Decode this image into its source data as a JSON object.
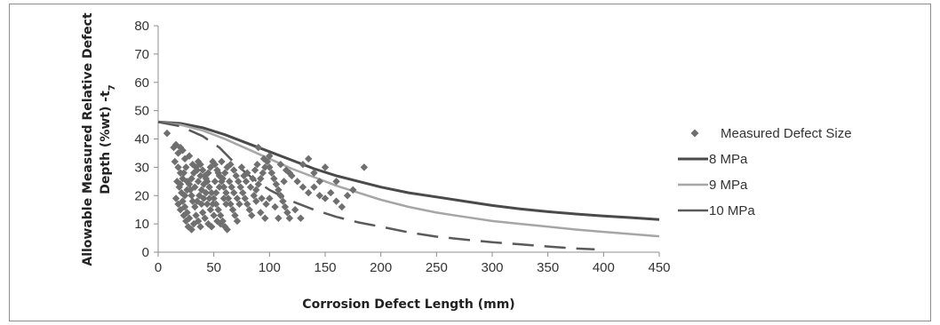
{
  "chart_data": {
    "type": "scatter",
    "xlabel": "Corrosion Defect Length (mm)",
    "ylabel_line1": "Allowable Measured Relative Defect",
    "ylabel_line2": "Depth (%wt) -t",
    "ylabel_subscript": "7",
    "xlim": [
      0,
      450
    ],
    "ylim": [
      0,
      80
    ],
    "x_ticks": [
      0,
      50,
      100,
      150,
      200,
      250,
      300,
      350,
      400,
      450
    ],
    "y_ticks": [
      0,
      10,
      20,
      30,
      40,
      50,
      60,
      70,
      80
    ],
    "grid": false,
    "legend_position": "right",
    "colors": {
      "points": "#6f6f6f",
      "line_8mpa": "#4a4a4a",
      "line_9mpa": "#a6a6a6",
      "line_10mpa": "#5a5a5a",
      "axis": "#8c8c8c"
    },
    "series": [
      {
        "name": "Measured Defect Size",
        "kind": "points",
        "points": [
          [
            8,
            42
          ],
          [
            14,
            37
          ],
          [
            16,
            38
          ],
          [
            18,
            35
          ],
          [
            20,
            37
          ],
          [
            22,
            36
          ],
          [
            24,
            33
          ],
          [
            15,
            32
          ],
          [
            18,
            30
          ],
          [
            20,
            28
          ],
          [
            22,
            26
          ],
          [
            17,
            25
          ],
          [
            19,
            23
          ],
          [
            21,
            21
          ],
          [
            16,
            19
          ],
          [
            18,
            17
          ],
          [
            20,
            15
          ],
          [
            23,
            13
          ],
          [
            25,
            11
          ],
          [
            27,
            9
          ],
          [
            30,
            8
          ],
          [
            32,
            10
          ],
          [
            28,
            12
          ],
          [
            26,
            14
          ],
          [
            24,
            16
          ],
          [
            22,
            18
          ],
          [
            24,
            20
          ],
          [
            26,
            22
          ],
          [
            28,
            24
          ],
          [
            30,
            26
          ],
          [
            32,
            28
          ],
          [
            34,
            30
          ],
          [
            36,
            32
          ],
          [
            38,
            31
          ],
          [
            40,
            29
          ],
          [
            42,
            27
          ],
          [
            44,
            25
          ],
          [
            46,
            23
          ],
          [
            48,
            21
          ],
          [
            50,
            19
          ],
          [
            52,
            17
          ],
          [
            54,
            15
          ],
          [
            56,
            13
          ],
          [
            58,
            11
          ],
          [
            60,
            9
          ],
          [
            62,
            8
          ],
          [
            35,
            18
          ],
          [
            37,
            20
          ],
          [
            39,
            22
          ],
          [
            41,
            24
          ],
          [
            43,
            26
          ],
          [
            45,
            28
          ],
          [
            47,
            30
          ],
          [
            49,
            32
          ],
          [
            51,
            31
          ],
          [
            53,
            29
          ],
          [
            55,
            27
          ],
          [
            57,
            25
          ],
          [
            59,
            23
          ],
          [
            61,
            21
          ],
          [
            63,
            19
          ],
          [
            65,
            17
          ],
          [
            67,
            15
          ],
          [
            69,
            13
          ],
          [
            71,
            11
          ],
          [
            30,
            20
          ],
          [
            33,
            23
          ],
          [
            36,
            25
          ],
          [
            38,
            27
          ],
          [
            41,
            19
          ],
          [
            44,
            17
          ],
          [
            47,
            15
          ],
          [
            50,
            13
          ],
          [
            53,
            11
          ],
          [
            56,
            10
          ],
          [
            40,
            14
          ],
          [
            42,
            12
          ],
          [
            45,
            10
          ],
          [
            48,
            9
          ],
          [
            52,
            21
          ],
          [
            55,
            23
          ],
          [
            58,
            26
          ],
          [
            60,
            28
          ],
          [
            62,
            30
          ],
          [
            65,
            31
          ],
          [
            68,
            29
          ],
          [
            70,
            27
          ],
          [
            72,
            25
          ],
          [
            74,
            23
          ],
          [
            76,
            21
          ],
          [
            78,
            19
          ],
          [
            80,
            17
          ],
          [
            82,
            15
          ],
          [
            84,
            13
          ],
          [
            86,
            20
          ],
          [
            88,
            22
          ],
          [
            90,
            24
          ],
          [
            92,
            26
          ],
          [
            94,
            28
          ],
          [
            96,
            30
          ],
          [
            98,
            32
          ],
          [
            100,
            30
          ],
          [
            102,
            28
          ],
          [
            104,
            26
          ],
          [
            106,
            24
          ],
          [
            108,
            22
          ],
          [
            110,
            20
          ],
          [
            112,
            18
          ],
          [
            114,
            16
          ],
          [
            116,
            14
          ],
          [
            118,
            12
          ],
          [
            90,
            37
          ],
          [
            95,
            33
          ],
          [
            100,
            34
          ],
          [
            110,
            31
          ],
          [
            115,
            29
          ],
          [
            120,
            27
          ],
          [
            125,
            25
          ],
          [
            130,
            23
          ],
          [
            135,
            21
          ],
          [
            140,
            23
          ],
          [
            145,
            20
          ],
          [
            150,
            19
          ],
          [
            155,
            21
          ],
          [
            160,
            18
          ],
          [
            165,
            16
          ],
          [
            170,
            20
          ],
          [
            175,
            22
          ],
          [
            130,
            31
          ],
          [
            135,
            33
          ],
          [
            140,
            28
          ],
          [
            145,
            25
          ],
          [
            150,
            30
          ],
          [
            160,
            25
          ],
          [
            185,
            30
          ],
          [
            123,
            15
          ],
          [
            128,
            12
          ],
          [
            75,
            30
          ],
          [
            80,
            28
          ],
          [
            85,
            26
          ],
          [
            88,
            18
          ],
          [
            92,
            14
          ],
          [
            96,
            12
          ],
          [
            100,
            19
          ],
          [
            105,
            16
          ],
          [
            108,
            12
          ],
          [
            113,
            25
          ],
          [
            118,
            28
          ],
          [
            25,
            30
          ],
          [
            28,
            34
          ],
          [
            31,
            31
          ],
          [
            35,
            29
          ],
          [
            20,
            24
          ],
          [
            23,
            28
          ],
          [
            26,
            25
          ],
          [
            29,
            22
          ],
          [
            31,
            18
          ],
          [
            33,
            16
          ],
          [
            34,
            13
          ],
          [
            36,
            11
          ],
          [
            38,
            9
          ],
          [
            39,
            17
          ],
          [
            43,
            21
          ],
          [
            46,
            19
          ],
          [
            49,
            17
          ],
          [
            51,
            25
          ],
          [
            54,
            28
          ],
          [
            57,
            32
          ],
          [
            59,
            19
          ],
          [
            61,
            17
          ],
          [
            64,
            25
          ],
          [
            66,
            23
          ],
          [
            68,
            21
          ],
          [
            71,
            19
          ],
          [
            73,
            17
          ],
          [
            77,
            27
          ],
          [
            79,
            25
          ],
          [
            83,
            23
          ],
          [
            87,
            29
          ],
          [
            89,
            31
          ],
          [
            93,
            19
          ],
          [
            97,
            17
          ]
        ]
      },
      {
        "name": "8 MPa",
        "kind": "line",
        "points": [
          [
            0,
            46
          ],
          [
            20,
            45.5
          ],
          [
            40,
            44
          ],
          [
            60,
            41.5
          ],
          [
            80,
            38.5
          ],
          [
            100,
            35.5
          ],
          [
            120,
            32.5
          ],
          [
            140,
            29.5
          ],
          [
            160,
            27
          ],
          [
            180,
            25
          ],
          [
            200,
            23
          ],
          [
            225,
            21
          ],
          [
            250,
            19.5
          ],
          [
            275,
            18
          ],
          [
            300,
            16.5
          ],
          [
            325,
            15.3
          ],
          [
            350,
            14.3
          ],
          [
            375,
            13.5
          ],
          [
            400,
            12.8
          ],
          [
            425,
            12.2
          ],
          [
            450,
            11.5
          ]
        ]
      },
      {
        "name": "9 MPa",
        "kind": "line",
        "points": [
          [
            0,
            46
          ],
          [
            20,
            45
          ],
          [
            40,
            43
          ],
          [
            60,
            40
          ],
          [
            80,
            36.5
          ],
          [
            100,
            33
          ],
          [
            120,
            29.5
          ],
          [
            140,
            26.5
          ],
          [
            160,
            23.5
          ],
          [
            180,
            21
          ],
          [
            200,
            18.5
          ],
          [
            225,
            16
          ],
          [
            250,
            14
          ],
          [
            275,
            12.5
          ],
          [
            300,
            11
          ],
          [
            325,
            10
          ],
          [
            350,
            9
          ],
          [
            375,
            8
          ],
          [
            400,
            7.2
          ],
          [
            425,
            6.4
          ],
          [
            450,
            5.6
          ]
        ]
      },
      {
        "name": "10 MPa",
        "kind": "line",
        "points": [
          [
            0,
            46
          ],
          [
            20,
            44.5
          ],
          [
            40,
            41
          ],
          [
            55,
            37
          ],
          [
            70,
            31
          ],
          [
            85,
            26
          ],
          [
            100,
            22
          ],
          [
            120,
            18
          ],
          [
            140,
            15
          ],
          [
            160,
            12.5
          ],
          [
            180,
            10.5
          ],
          [
            200,
            9
          ],
          [
            225,
            7
          ],
          [
            250,
            5.5
          ],
          [
            275,
            4.5
          ],
          [
            300,
            3.5
          ],
          [
            325,
            2.8
          ],
          [
            350,
            2
          ],
          [
            375,
            1.3
          ],
          [
            392,
            1
          ]
        ]
      }
    ]
  }
}
